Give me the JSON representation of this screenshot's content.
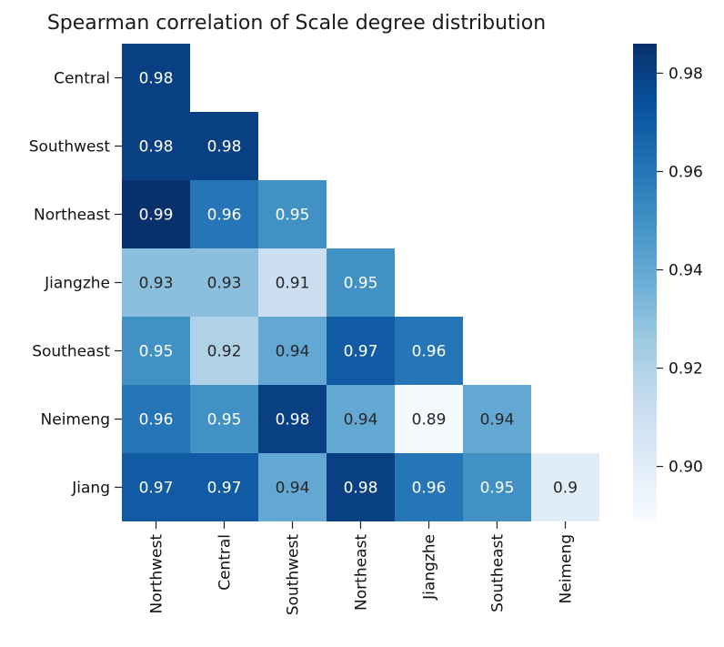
{
  "chart_data": {
    "type": "heatmap",
    "title": "Spearman correlation of Scale degree distribution",
    "row_labels": [
      "Central",
      "Southwest",
      "Northeast",
      "Jiangzhe",
      "Southeast",
      "Neimeng",
      "Jiang"
    ],
    "col_labels": [
      "Northwest",
      "Central",
      "Southwest",
      "Northeast",
      "Jiangzhe",
      "Southeast",
      "Neimeng"
    ],
    "values": [
      [
        0.98,
        null,
        null,
        null,
        null,
        null,
        null
      ],
      [
        0.98,
        0.98,
        null,
        null,
        null,
        null,
        null
      ],
      [
        0.99,
        0.96,
        0.95,
        null,
        null,
        null,
        null
      ],
      [
        0.93,
        0.93,
        0.91,
        0.95,
        null,
        null,
        null
      ],
      [
        0.95,
        0.92,
        0.94,
        0.97,
        0.96,
        null,
        null
      ],
      [
        0.96,
        0.95,
        0.98,
        0.94,
        0.89,
        0.94,
        null
      ],
      [
        0.97,
        0.97,
        0.94,
        0.98,
        0.96,
        0.95,
        0.9
      ]
    ],
    "colorbar": {
      "min": 0.889,
      "max": 0.986,
      "ticks": [
        0.98,
        0.96,
        0.94,
        0.92,
        0.9
      ],
      "tick_labels": [
        "0.98",
        "0.96",
        "0.94",
        "0.92",
        "0.90"
      ]
    },
    "colormap": "Blues",
    "mask": "upper-triangle"
  }
}
